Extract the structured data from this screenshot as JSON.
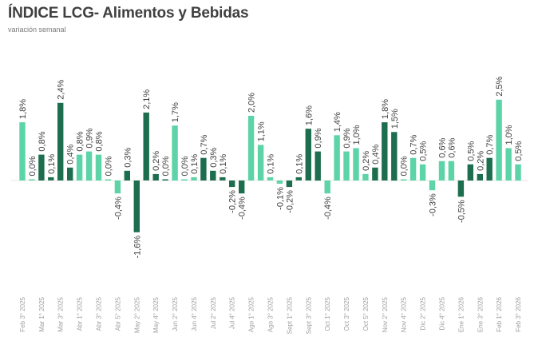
{
  "header": {
    "title": "ÍNDICE LCG- Alimentos y Bebidas",
    "subtitle": "variación semanal"
  },
  "colors": {
    "light": "#5dd3a8",
    "dark": "#1d6e4e",
    "axis": "#e6e6e6",
    "label": "#404040",
    "xlabel": "#a0a0a0"
  },
  "chart_data": {
    "type": "bar",
    "title": "ÍNDICE LCG- Alimentos y Bebidas",
    "subtitle": "variación semanal",
    "xlabel": "",
    "ylabel": "",
    "ylim": [
      -1.7,
      2.6
    ],
    "grid": false,
    "legend": null,
    "values": [
      1.8,
      0.0,
      0.8,
      0.1,
      2.4,
      0.4,
      0.8,
      0.9,
      0.8,
      0.0,
      -0.4,
      0.3,
      -1.6,
      2.1,
      0.2,
      0.0,
      1.7,
      0.0,
      0.1,
      0.7,
      0.3,
      0.1,
      -0.2,
      -0.4,
      2.0,
      1.1,
      0.1,
      -0.1,
      -0.2,
      0.1,
      1.6,
      0.9,
      -0.4,
      1.4,
      0.9,
      1.0,
      0.2,
      0.4,
      1.8,
      1.5,
      0.0,
      0.7,
      0.5,
      -0.3,
      0.6,
      0.6,
      -0.5,
      0.5,
      0.2,
      0.7,
      2.5,
      1.0,
      0.5
    ],
    "value_labels": [
      "1,8%",
      "0,0%",
      "0,8%",
      "0,1%",
      "2,4%",
      "0,4%",
      "0,8%",
      "0,9%",
      "0,8%",
      "0,0%",
      "-0,4%",
      "0,3%",
      "-1,6%",
      "2,1%",
      "0,2%",
      "0,0%",
      "1,7%",
      "0,0%",
      "0,1%",
      "0,7%",
      "0,3%",
      "0,1%",
      "-0,2%",
      "-0,4%",
      "2,0%",
      "1,1%",
      "0,1%",
      "-0,1%",
      "-0,2%",
      "0,1%",
      "1,6%",
      "0,9%",
      "-0,4%",
      "1,4%",
      "0,9%",
      "1,0%",
      "0,2%",
      "0,4%",
      "1,8%",
      "1,5%",
      "0,0%",
      "0,7%",
      "0,5%",
      "-0,3%",
      "0,6%",
      "0,6%",
      "-0,5%",
      "0,5%",
      "0,2%",
      "0,7%",
      "2,5%",
      "1,0%",
      "0,5%"
    ],
    "bar_colors": [
      "light",
      "light",
      "dark",
      "dark",
      "dark",
      "dark",
      "light",
      "light",
      "light",
      "light",
      "light",
      "dark",
      "dark",
      "dark",
      "dark",
      "dark",
      "light",
      "light",
      "light",
      "dark",
      "dark",
      "dark",
      "dark",
      "dark",
      "light",
      "light",
      "light",
      "light",
      "dark",
      "dark",
      "dark",
      "dark",
      "light",
      "light",
      "light",
      "light",
      "light",
      "dark",
      "dark",
      "dark",
      "light",
      "light",
      "light",
      "light",
      "light",
      "light",
      "dark",
      "dark",
      "dark",
      "dark",
      "light",
      "light",
      "light"
    ],
    "categories": [
      "Feb 3° 2025",
      "Mar 1° 2025",
      "Mar 3° 2025",
      "Abr 1° 2025",
      "Abr 3° 2025",
      "Abr 5° 2025",
      "May 2° 2025",
      "May 4° 2025",
      "Jun 2° 2025",
      "Jun 4° 2025",
      "Jul 2° 2025",
      "Jul 4° 2025",
      "Ago 1° 2025",
      "Ago 3° 2025",
      "Sept 1° 2025",
      "Sept 3° 2025",
      "Oct 1° 2025",
      "Oct 3° 2025",
      "Oct 5° 2025",
      "Nov 2° 2025",
      "Nov 4° 2025",
      "Dic 2° 2025",
      "Dic 4° 2025",
      "Ene 1° 2026",
      "Ene 3° 2026",
      "Feb 1° 2026",
      "Feb 3° 2026"
    ]
  }
}
